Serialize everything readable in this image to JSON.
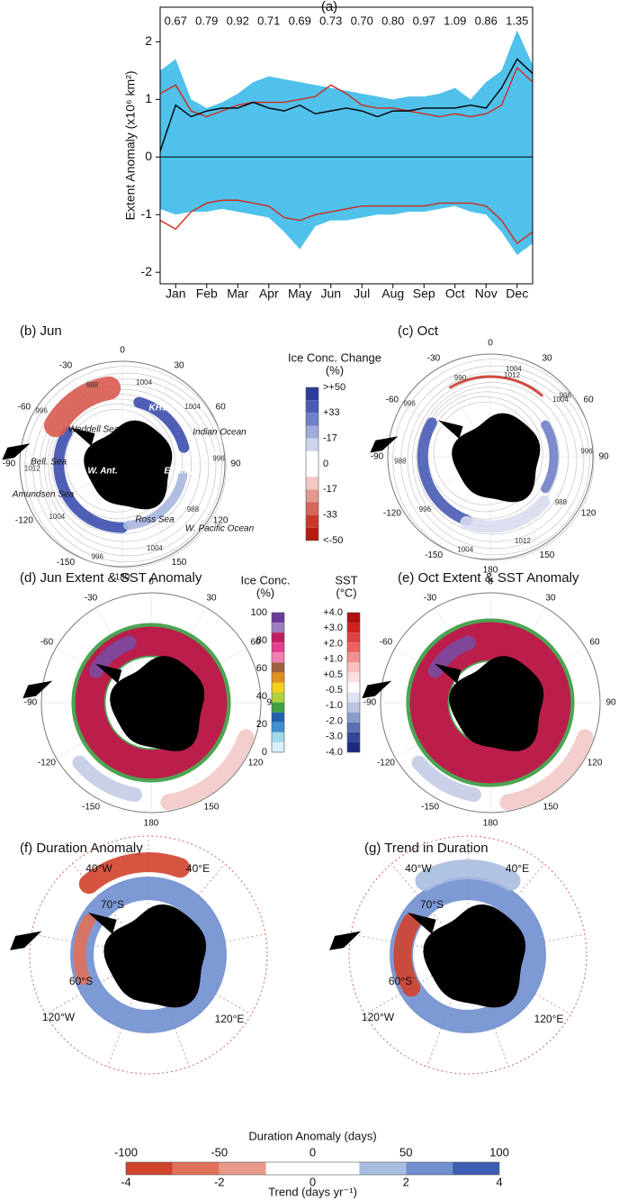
{
  "chart_data": {
    "type": "line",
    "title": "(a)",
    "y_label": "Extent Anomaly (x10⁶ km²)",
    "x": [
      0,
      0.5,
      1,
      1.5,
      2,
      2.5,
      3,
      3.5,
      4,
      4.5,
      5,
      5.5,
      6,
      6.5,
      7,
      7.5,
      8,
      8.5,
      9,
      9.5,
      10,
      10.5,
      11,
      11.5,
      12
    ],
    "xlim": [
      0,
      12
    ],
    "xticks": [
      {
        "value": 0.5,
        "label": "Jan"
      },
      {
        "value": 1.5,
        "label": "Feb"
      },
      {
        "value": 2.5,
        "label": "Mar"
      },
      {
        "value": 3.5,
        "label": "Apr"
      },
      {
        "value": 4.5,
        "label": "May"
      },
      {
        "value": 5.5,
        "label": "Jun"
      },
      {
        "value": 6.5,
        "label": "Jul"
      },
      {
        "value": 7.5,
        "label": "Aug"
      },
      {
        "value": 8.5,
        "label": "Sep"
      },
      {
        "value": 9.5,
        "label": "Oct"
      },
      {
        "value": 10.5,
        "label": "Nov"
      },
      {
        "value": 11.5,
        "label": "Dec"
      }
    ],
    "ylim": [
      -2.2,
      2.6
    ],
    "yticks": [
      -2,
      -1,
      0,
      1,
      2
    ],
    "annotations": [
      "0.67",
      "0.79",
      "0.92",
      "0.71",
      "0.69",
      "0.73",
      "0.70",
      "0.80",
      "0.97",
      "1.09",
      "0.86",
      "1.35"
    ],
    "series": [
      {
        "type": "band",
        "color": "#4fc1ea",
        "values": [
          1.5,
          1.7,
          1.0,
          0.85,
          0.95,
          1.1,
          1.3,
          1.4,
          1.35,
          1.3,
          1.25,
          1.2,
          1.15,
          1.1,
          1.05,
          1.0,
          1.05,
          1.05,
          1.1,
          1.2,
          1.0,
          1.3,
          1.5,
          2.2,
          1.6
        ],
        "lower": [
          -0.9,
          -1.0,
          -0.95,
          -0.95,
          -0.9,
          -0.95,
          -1.0,
          -1.05,
          -1.3,
          -1.6,
          -1.2,
          -1.1,
          -1.1,
          -1.05,
          -1.0,
          -1.0,
          -0.95,
          -0.95,
          -0.9,
          -0.85,
          -0.95,
          -1.0,
          -1.3,
          -1.7,
          -1.5
        ]
      },
      {
        "color": "#d02a1e",
        "values": [
          1.1,
          1.25,
          0.8,
          0.7,
          0.8,
          0.9,
          0.95,
          0.95,
          0.95,
          1.0,
          1.05,
          1.25,
          1.1,
          0.9,
          0.85,
          0.85,
          0.8,
          0.75,
          0.7,
          0.75,
          0.7,
          0.75,
          0.9,
          1.55,
          1.3
        ]
      },
      {
        "color": "#d02a1e",
        "values": [
          -1.1,
          -1.25,
          -0.95,
          -0.8,
          -0.75,
          -0.75,
          -0.8,
          -0.85,
          -1.05,
          -1.1,
          -1.0,
          -0.95,
          -0.9,
          -0.85,
          -0.85,
          -0.85,
          -0.85,
          -0.85,
          -0.8,
          -0.8,
          -0.8,
          -0.85,
          -1.1,
          -1.5,
          -1.3
        ]
      },
      {
        "color": "#000000",
        "values": [
          0.1,
          0.9,
          0.7,
          0.8,
          0.85,
          0.85,
          0.95,
          0.85,
          0.8,
          0.9,
          0.75,
          0.8,
          0.85,
          0.8,
          0.7,
          0.8,
          0.8,
          0.85,
          0.85,
          0.85,
          0.9,
          0.85,
          1.2,
          1.7,
          1.45
        ]
      }
    ]
  },
  "maps": [
    {
      "title": "(b) Jun",
      "lon_labels": [
        "0",
        "30",
        "60",
        "90",
        "120",
        "150",
        "180",
        "-150",
        "-120",
        "-90",
        "-60",
        "-30"
      ],
      "places": [
        "Weddell Sea",
        "KHS",
        "Indian Ocean",
        "Bell. Sea",
        "AIS",
        "W. Ant.",
        "E. Ant.",
        "Amundsen Sea",
        "Ross Sea",
        "W. Pacific Ocean"
      ],
      "isobars": [
        "1004",
        "1004",
        "996",
        "988",
        "1004",
        "996",
        "1004",
        "1012",
        "996",
        "988"
      ]
    },
    {
      "title": "(c) Oct",
      "lon_labels": [
        "0",
        "30",
        "60",
        "90",
        "120",
        "150",
        "180",
        "-150",
        "-120",
        "-90",
        "-60",
        "-30"
      ],
      "isobars": [
        "1012",
        "1004",
        "996",
        "988",
        "1012",
        "1004",
        "996",
        "988",
        "996",
        "990",
        "1004",
        "996"
      ]
    },
    {
      "title": "(d) Jun Extent & SST Anomaly",
      "lon_labels": [
        "0",
        "30",
        "60",
        "90",
        "120",
        "150",
        "180",
        "-150",
        "-120",
        "-90",
        "-60",
        "-30"
      ]
    },
    {
      "title": "(e) Oct Extent & SST Anomaly",
      "lon_labels": [
        "0",
        "30",
        "60",
        "90",
        "120",
        "150",
        "180",
        "-150",
        "-120",
        "-90",
        "-60",
        "-30"
      ]
    },
    {
      "title": "(f) Duration Anomaly",
      "grid_labels": [
        "40°W",
        "40°E",
        "70°S",
        "60°S",
        "120°W",
        "120°E"
      ]
    },
    {
      "title": "(g) Trend in Duration",
      "grid_labels": [
        "40°W",
        "40°E",
        "70°S",
        "60°S",
        "120°W",
        "120°E"
      ]
    }
  ],
  "colorbars": [
    {
      "title": "Ice Conc. Change",
      "unit": "(%)",
      "labels": [
        ">+50",
        "+33",
        "-17",
        "0",
        "-17",
        "-33",
        "<-50"
      ],
      "colors": [
        "#2b3d99",
        "#4a5cb5",
        "#7080c8",
        "#a0abd9",
        "#cdd3ec",
        "#ffffff",
        "#ffffff",
        "#f1c9c4",
        "#e29a90",
        "#d4665a",
        "#c93a2c",
        "#b81c10"
      ]
    },
    {
      "title": "Ice Conc.",
      "unit": "(%)",
      "labels": [
        "100",
        "80",
        "60",
        "40",
        "20",
        "0"
      ],
      "colors": [
        "#6a3d9a",
        "#9a7fc0",
        "#c02060",
        "#e0408a",
        "#f080b0",
        "#a06040",
        "#e09020",
        "#f0d020",
        "#b0d040",
        "#40a040",
        "#2060b0",
        "#4090d0",
        "#a0d8e8",
        "#d8f0f8"
      ]
    },
    {
      "title": "SST",
      "unit": "(°C)",
      "labels": [
        "+4.0",
        "+3.0",
        "+2.0",
        "+1.0",
        "+0.5",
        "-0.5",
        "-1.0",
        "-2.0",
        "-3.0",
        "-4.0"
      ],
      "colors": [
        "#b01010",
        "#d02020",
        "#e04040",
        "#f06060",
        "#f09090",
        "#f8c0c0",
        "#fce0e0",
        "#ffffff",
        "#dde3f0",
        "#b8c4e0",
        "#8a9ccc",
        "#5a70b5",
        "#34489a",
        "#1d2a80"
      ]
    },
    {
      "title": "Duration Anomaly (days)",
      "unit": "Trend (days yr⁻¹)",
      "labels": [
        "-100",
        "-50",
        "0",
        "50",
        "100"
      ],
      "labels2": [
        "-4",
        "-2",
        "0",
        "2",
        "4"
      ],
      "colors": [
        "#d0432c",
        "#e0705a",
        "#e89a8a",
        "#ffffff",
        "#ffffff",
        "#a8bde0",
        "#6f8fd0",
        "#3a5fb5"
      ]
    }
  ]
}
